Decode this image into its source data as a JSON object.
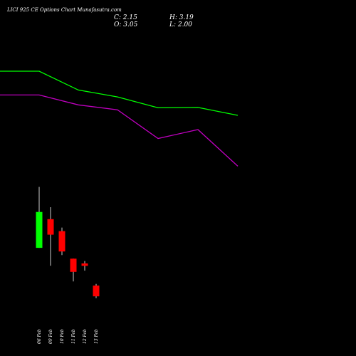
{
  "chart_data": {
    "type": "candlestick",
    "title": "LICI 925 CE Options Chart Munafasutra.com",
    "ohlc_readout": {
      "close_label": "C: 2.15",
      "open_label": "O: 3.05",
      "high_label": "H: 3.19",
      "low_label": "L: 2.00"
    },
    "categories": [
      "06 Feb",
      "09 Feb",
      "10 Feb",
      "11 Feb",
      "12 Feb",
      "13 Feb"
    ],
    "candles": [
      {
        "date": "06 Feb",
        "open": 6.2,
        "high": 11.3,
        "low": 6.2,
        "close": 9.2
      },
      {
        "date": "09 Feb",
        "open": 8.6,
        "high": 9.6,
        "low": 4.7,
        "close": 7.3
      },
      {
        "date": "10 Feb",
        "open": 7.6,
        "high": 7.9,
        "low": 5.6,
        "close": 5.9
      },
      {
        "date": "11 Feb",
        "open": 5.3,
        "high": 5.3,
        "low": 3.4,
        "close": 4.2
      },
      {
        "date": "12 Feb",
        "open": 4.9,
        "high": 5.1,
        "low": 4.3,
        "close": 4.7
      },
      {
        "date": "13 Feb",
        "open": 3.05,
        "high": 3.19,
        "low": 2.0,
        "close": 2.15
      }
    ],
    "series": [
      {
        "color": "#00ff00",
        "x": [
          0,
          1,
          2,
          3,
          4,
          5,
          6
        ],
        "values": [
          86.0,
          86.0,
          76.5,
          73.0,
          67.5,
          67.7,
          63.7
        ]
      },
      {
        "color": "#c000c0",
        "x": [
          0,
          1,
          2,
          3,
          4,
          5,
          6
        ],
        "values": [
          74.0,
          74.0,
          69.0,
          66.5,
          52.0,
          56.5,
          38.0
        ]
      }
    ],
    "colors": {
      "up": "#00ff00",
      "down": "#ff0000",
      "background": "#000000",
      "text": "#ffffff"
    },
    "grid": false,
    "legend": "none"
  }
}
